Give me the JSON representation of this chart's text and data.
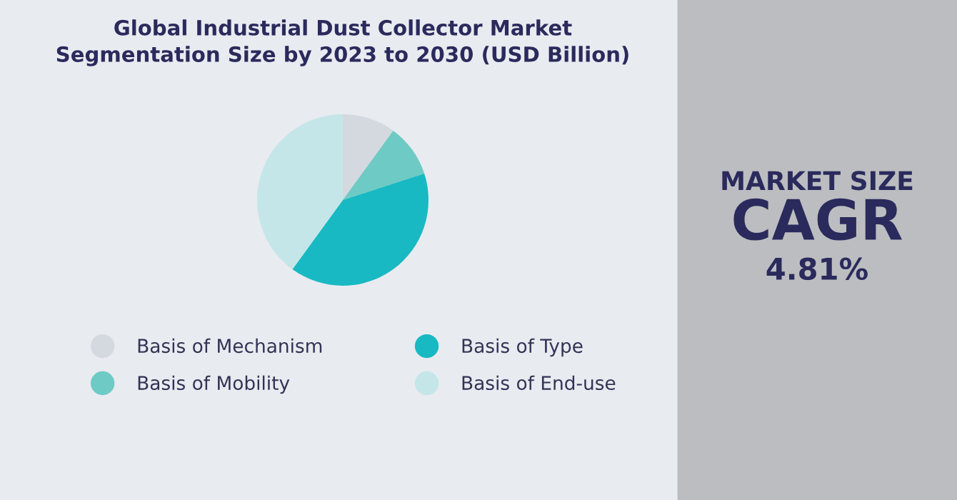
{
  "chart_data": {
    "type": "pie",
    "title": "Global Industrial Dust Collector Market\nSegmentation Size by 2023 to 2030 (USD Billion)",
    "categories": [
      "Basis of Mechanism",
      "Basis of Mobility",
      "Basis of Type",
      "Basis of End-use"
    ],
    "values": [
      10,
      10,
      40,
      40
    ],
    "colors": [
      "#d3d9df",
      "#6ecac4",
      "#18b9c2",
      "#c4e6e9"
    ],
    "legend": "bottom",
    "annotations": [
      "MARKET SIZE",
      "CAGR",
      "4.81%"
    ]
  }
}
